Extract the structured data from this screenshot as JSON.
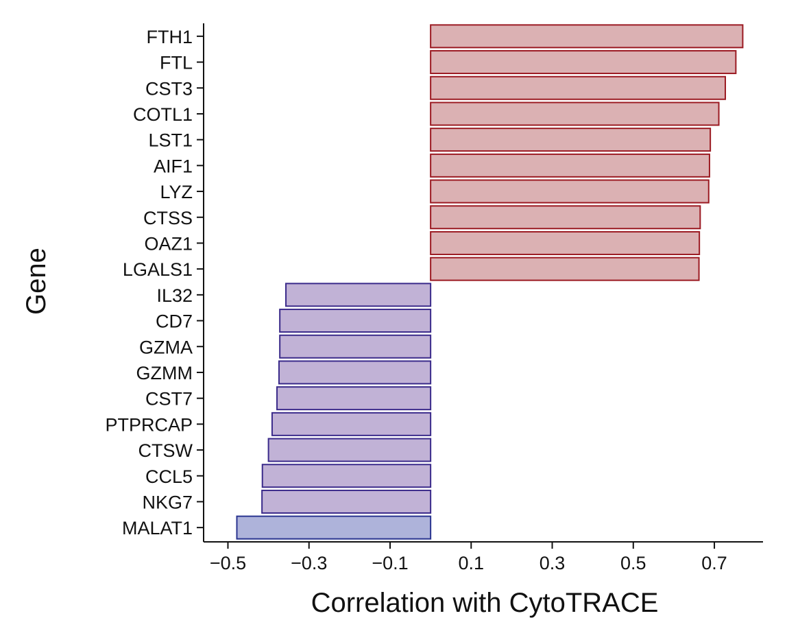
{
  "chart_data": {
    "type": "bar",
    "orientation": "horizontal",
    "title": "",
    "xlabel": "Correlation with CytoTRACE",
    "ylabel": "Gene",
    "xlim": [
      -0.56,
      0.82
    ],
    "xticks": [
      -0.5,
      -0.3,
      -0.1,
      0.1,
      0.3,
      0.5,
      0.7
    ],
    "xtick_labels": [
      "−0.5",
      "−0.3",
      "−0.1",
      "0.1",
      "0.3",
      "0.5",
      "0.7"
    ],
    "grid": false,
    "legend": "none",
    "categories": [
      "FTH1",
      "FTL",
      "CST3",
      "COTL1",
      "LST1",
      "AIF1",
      "LYZ",
      "CTSS",
      "OAZ1",
      "LGALS1",
      "IL32",
      "CD7",
      "GZMA",
      "GZMM",
      "CST7",
      "PTPRCAP",
      "CTSW",
      "CCL5",
      "NKG7",
      "MALAT1"
    ],
    "values": [
      0.77,
      0.753,
      0.727,
      0.711,
      0.69,
      0.688,
      0.686,
      0.665,
      0.663,
      0.662,
      -0.357,
      -0.372,
      -0.372,
      -0.374,
      -0.379,
      -0.391,
      -0.4,
      -0.415,
      -0.416,
      -0.478
    ],
    "colors": {
      "positive_fill": "#dbb1b3",
      "positive_stroke": "#9b1a22",
      "negative_fill": "#c1b2d6",
      "negative_stroke": "#3a2a8a",
      "lowest_fill": "#aeb3da",
      "lowest_stroke": "#2a3590"
    }
  }
}
